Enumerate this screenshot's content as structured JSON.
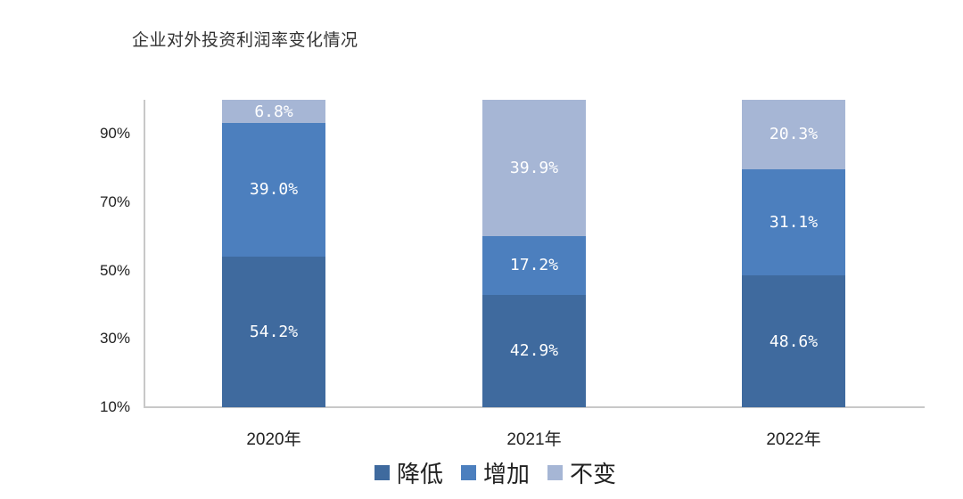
{
  "chart_data": {
    "type": "bar",
    "stacked": true,
    "title": "企业对外投资利润率变化情况",
    "categories": [
      "2020年",
      "2021年",
      "2022年"
    ],
    "series": [
      {
        "name": "降低",
        "color": "#3f6a9e",
        "values": [
          54.2,
          42.9,
          48.6
        ],
        "labels": [
          "54.2%",
          "42.9%",
          "48.6%"
        ]
      },
      {
        "name": "增加",
        "color": "#4c7fbe",
        "values": [
          39.0,
          17.2,
          31.1
        ],
        "labels": [
          "39.0%",
          "17.2%",
          "31.1%"
        ]
      },
      {
        "name": "不变",
        "color": "#a6b6d5",
        "values": [
          6.8,
          39.9,
          20.3
        ],
        "labels": [
          "6.8%",
          "39.9%",
          "20.3%"
        ]
      }
    ],
    "yticks": [
      "10%",
      "30%",
      "50%",
      "70%",
      "90%"
    ],
    "ylim": [
      10,
      100
    ],
    "xlabel": "",
    "ylabel": "",
    "grid": false,
    "legend_position": "bottom"
  }
}
